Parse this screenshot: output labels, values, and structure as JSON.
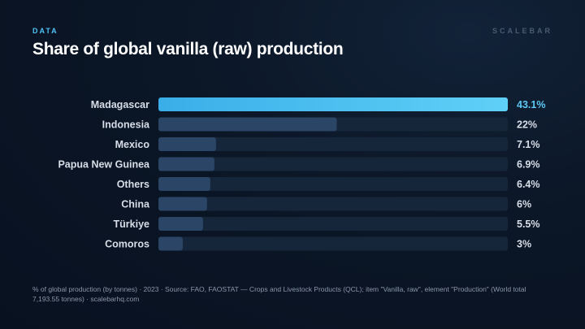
{
  "header": {
    "kicker": "DATA",
    "brand": "SCALEBAR",
    "title": "Share of global vanilla (raw) production"
  },
  "footnote": "% of global production (by tonnes) · 2023 · Source: FAO, FAOSTAT — Crops and Livestock Products (QCL); item \"Vanilla, raw\", element \"Production\" (World total 7,193.55 tonnes) · scalebarhq.com",
  "colors": {
    "highlight_start": "#3aaee8",
    "highlight_end": "#5fd0f7",
    "bar": "#2b4566",
    "track": "#16263a",
    "label_highlight": "#5cc8f5",
    "label": "#d8dee8"
  },
  "chart_data": {
    "type": "bar",
    "orientation": "horizontal",
    "categories": [
      "Madagascar",
      "Indonesia",
      "Mexico",
      "Papua New Guinea",
      "Others",
      "China",
      "Türkiye",
      "Comoros"
    ],
    "values": [
      43.1,
      22,
      7.1,
      6.9,
      6.4,
      6,
      5.5,
      3
    ],
    "value_labels": [
      "43.1%",
      "22%",
      "7.1%",
      "6.9%",
      "6.4%",
      "6%",
      "5.5%",
      "3%"
    ],
    "highlight_index": 0,
    "xlim": [
      0,
      43.1
    ]
  }
}
